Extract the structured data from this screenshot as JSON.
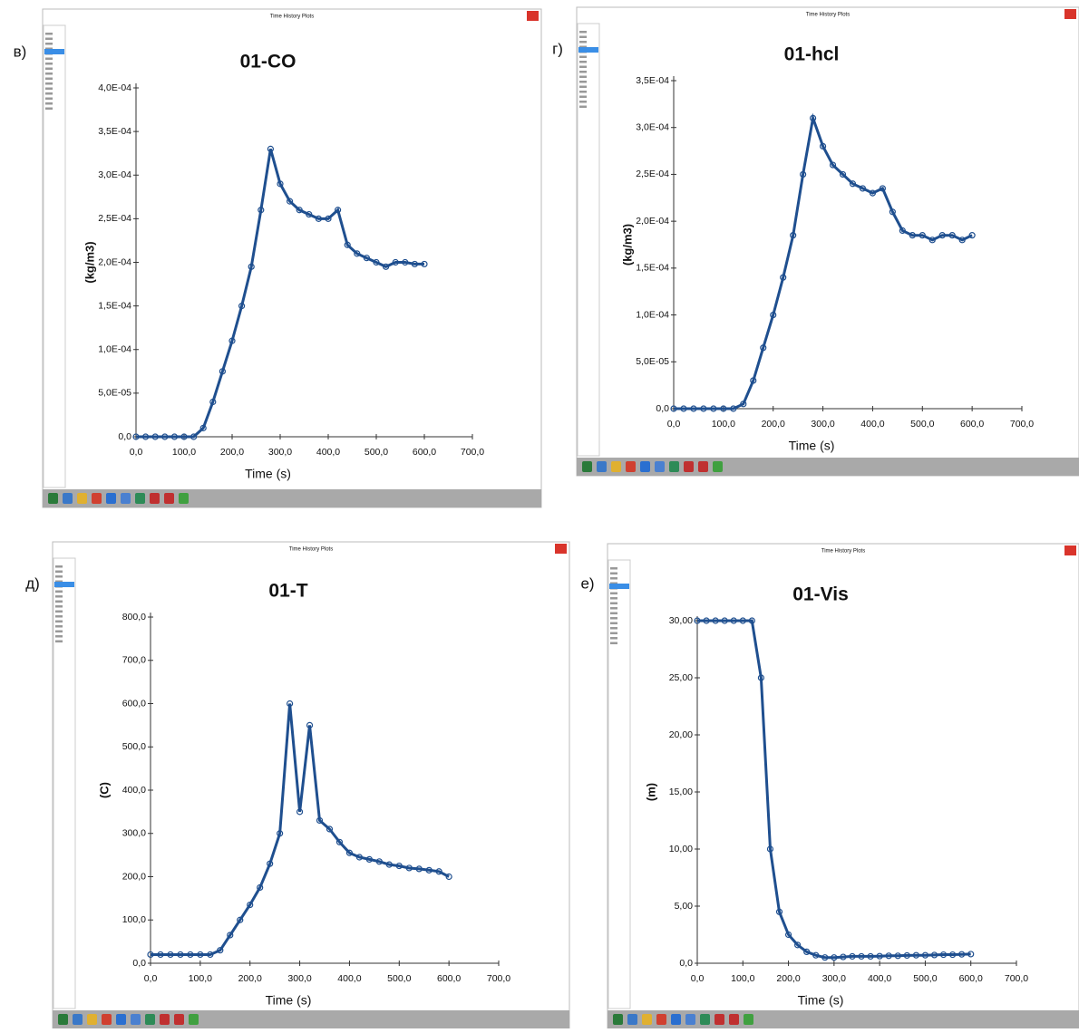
{
  "chart_data": [
    {
      "type": "line",
      "panel_label": "в)",
      "window_title": "Time History Plots",
      "title": "01-CO",
      "x_label": "Time (s)",
      "y_label": "(kg/m3)",
      "color": "#1f4f8f",
      "x": [
        0,
        20,
        40,
        60,
        80,
        100,
        120,
        140,
        160,
        180,
        200,
        220,
        240,
        260,
        280,
        300,
        320,
        340,
        360,
        380,
        400,
        420,
        440,
        460,
        480,
        500,
        520,
        540,
        560,
        580,
        600
      ],
      "values": [
        0,
        0,
        0,
        0,
        0,
        0,
        0,
        1e-05,
        4e-05,
        7.5e-05,
        0.00011,
        0.00015,
        0.000195,
        0.00026,
        0.00033,
        0.00029,
        0.00027,
        0.00026,
        0.000255,
        0.00025,
        0.00025,
        0.00026,
        0.00022,
        0.00021,
        0.000205,
        0.0002,
        0.000195,
        0.0002,
        0.0002,
        0.000198,
        0.000198
      ],
      "xlim": [
        0,
        700
      ],
      "ylim": [
        0,
        0.0004
      ],
      "xticks": [
        {
          "value": 0,
          "label": "0,0"
        },
        {
          "value": 100,
          "label": "100,0"
        },
        {
          "value": 200,
          "label": "200,0"
        },
        {
          "value": 300,
          "label": "300,0"
        },
        {
          "value": 400,
          "label": "400,0"
        },
        {
          "value": 500,
          "label": "500,0"
        },
        {
          "value": 600,
          "label": "600,0"
        },
        {
          "value": 700,
          "label": "700,0"
        }
      ],
      "yticks": [
        {
          "value": 0,
          "label": "0,0"
        },
        {
          "value": 5e-05,
          "label": "5,0E-05"
        },
        {
          "value": 0.0001,
          "label": "1,0E-04"
        },
        {
          "value": 0.00015,
          "label": "1,5E-04"
        },
        {
          "value": 0.0002,
          "label": "2,0E-04"
        },
        {
          "value": 0.00025,
          "label": "2,5E-04"
        },
        {
          "value": 0.0003,
          "label": "3,0E-04"
        },
        {
          "value": 0.00035,
          "label": "3,5E-04"
        },
        {
          "value": 0.0004,
          "label": "4,0E-04"
        }
      ]
    },
    {
      "type": "line",
      "panel_label": "г)",
      "window_title": "Time History Plots",
      "title": "01-hcl",
      "x_label": "Time (s)",
      "y_label": "(kg/m3)",
      "color": "#1f4f8f",
      "x": [
        0,
        20,
        40,
        60,
        80,
        100,
        120,
        140,
        160,
        180,
        200,
        220,
        240,
        260,
        280,
        300,
        320,
        340,
        360,
        380,
        400,
        420,
        440,
        460,
        480,
        500,
        520,
        540,
        560,
        580,
        600
      ],
      "values": [
        0,
        0,
        0,
        0,
        0,
        0,
        0,
        5e-06,
        3e-05,
        6.5e-05,
        0.0001,
        0.00014,
        0.000185,
        0.00025,
        0.00031,
        0.00028,
        0.00026,
        0.00025,
        0.00024,
        0.000235,
        0.00023,
        0.000235,
        0.00021,
        0.00019,
        0.000185,
        0.000185,
        0.00018,
        0.000185,
        0.000185,
        0.00018,
        0.000185
      ],
      "xlim": [
        0,
        700
      ],
      "ylim": [
        0,
        0.00035
      ],
      "xticks": [
        {
          "value": 0,
          "label": "0,0"
        },
        {
          "value": 100,
          "label": "100,0"
        },
        {
          "value": 200,
          "label": "200,0"
        },
        {
          "value": 300,
          "label": "300,0"
        },
        {
          "value": 400,
          "label": "400,0"
        },
        {
          "value": 500,
          "label": "500,0"
        },
        {
          "value": 600,
          "label": "600,0"
        },
        {
          "value": 700,
          "label": "700,0"
        }
      ],
      "yticks": [
        {
          "value": 0,
          "label": "0,0"
        },
        {
          "value": 5e-05,
          "label": "5,0E-05"
        },
        {
          "value": 0.0001,
          "label": "1,0E-04"
        },
        {
          "value": 0.00015,
          "label": "1,5E-04"
        },
        {
          "value": 0.0002,
          "label": "2,0E-04"
        },
        {
          "value": 0.00025,
          "label": "2,5E-04"
        },
        {
          "value": 0.0003,
          "label": "3,0E-04"
        },
        {
          "value": 0.00035,
          "label": "3,5E-04"
        }
      ]
    },
    {
      "type": "line",
      "panel_label": "д)",
      "window_title": "Time History Plots",
      "title": "01-T",
      "x_label": "Time (s)",
      "y_label": "(C)",
      "color": "#1f4f8f",
      "x": [
        0,
        20,
        40,
        60,
        80,
        100,
        120,
        140,
        160,
        180,
        200,
        220,
        240,
        260,
        280,
        300,
        320,
        340,
        360,
        380,
        400,
        420,
        440,
        460,
        480,
        500,
        520,
        540,
        560,
        580,
        600
      ],
      "values": [
        20,
        20,
        20,
        20,
        20,
        20,
        20,
        30,
        65,
        100,
        135,
        175,
        230,
        300,
        600,
        350,
        550,
        330,
        310,
        280,
        255,
        245,
        240,
        235,
        228,
        225,
        220,
        218,
        215,
        212,
        200
      ],
      "xlim": [
        0,
        700
      ],
      "ylim": [
        0,
        800
      ],
      "xticks": [
        {
          "value": 0,
          "label": "0,0"
        },
        {
          "value": 100,
          "label": "100,0"
        },
        {
          "value": 200,
          "label": "200,0"
        },
        {
          "value": 300,
          "label": "300,0"
        },
        {
          "value": 400,
          "label": "400,0"
        },
        {
          "value": 500,
          "label": "500,0"
        },
        {
          "value": 600,
          "label": "600,0"
        },
        {
          "value": 700,
          "label": "700,0"
        }
      ],
      "yticks": [
        {
          "value": 0,
          "label": "0,0"
        },
        {
          "value": 100,
          "label": "100,0"
        },
        {
          "value": 200,
          "label": "200,0"
        },
        {
          "value": 300,
          "label": "300,0"
        },
        {
          "value": 400,
          "label": "400,0"
        },
        {
          "value": 500,
          "label": "500,0"
        },
        {
          "value": 600,
          "label": "600,0"
        },
        {
          "value": 700,
          "label": "700,0"
        },
        {
          "value": 800,
          "label": "800,0"
        }
      ]
    },
    {
      "type": "line",
      "panel_label": "е)",
      "window_title": "Time History Plots",
      "title": "01-Vis",
      "x_label": "Time (s)",
      "y_label": "(m)",
      "color": "#1f4f8f",
      "x": [
        0,
        20,
        40,
        60,
        80,
        100,
        120,
        140,
        160,
        180,
        200,
        220,
        240,
        260,
        280,
        300,
        320,
        340,
        360,
        380,
        400,
        420,
        440,
        460,
        480,
        500,
        520,
        540,
        560,
        580,
        600
      ],
      "values": [
        30,
        30,
        30,
        30,
        30,
        30,
        30,
        25,
        10,
        4.5,
        2.5,
        1.6,
        1.0,
        0.7,
        0.5,
        0.5,
        0.55,
        0.6,
        0.6,
        0.6,
        0.62,
        0.65,
        0.65,
        0.68,
        0.7,
        0.7,
        0.72,
        0.75,
        0.75,
        0.78,
        0.8
      ],
      "xlim": [
        0,
        700
      ],
      "ylim": [
        0,
        30
      ],
      "xticks": [
        {
          "value": 0,
          "label": "0,0"
        },
        {
          "value": 100,
          "label": "100,0"
        },
        {
          "value": 200,
          "label": "200,0"
        },
        {
          "value": 300,
          "label": "300,0"
        },
        {
          "value": 400,
          "label": "400,0"
        },
        {
          "value": 500,
          "label": "500,0"
        },
        {
          "value": 600,
          "label": "600,0"
        },
        {
          "value": 700,
          "label": "700,0"
        }
      ],
      "yticks": [
        {
          "value": 0,
          "label": "0,0"
        },
        {
          "value": 5,
          "label": "5,00"
        },
        {
          "value": 10,
          "label": "10,00"
        },
        {
          "value": 15,
          "label": "15,00"
        },
        {
          "value": 20,
          "label": "20,00"
        },
        {
          "value": 25,
          "label": "25,00"
        },
        {
          "value": 30,
          "label": "30,00"
        }
      ]
    }
  ]
}
